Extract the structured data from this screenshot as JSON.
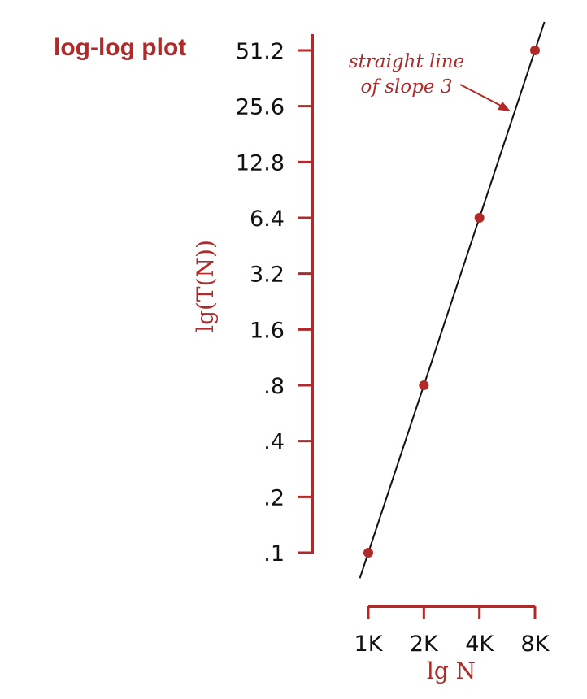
{
  "chart_data": {
    "type": "scatter",
    "title": "log-log plot",
    "xlabel": "lg N",
    "ylabel": "lg(T(N))",
    "x_scale": "log2",
    "y_scale": "log2",
    "x_ticks": [
      {
        "value": 1000,
        "label": "1K"
      },
      {
        "value": 2000,
        "label": "2K"
      },
      {
        "value": 4000,
        "label": "4K"
      },
      {
        "value": 8000,
        "label": "8K"
      }
    ],
    "y_ticks": [
      {
        "value": 0.1,
        "label": ".1"
      },
      {
        "value": 0.2,
        "label": ".2"
      },
      {
        "value": 0.4,
        "label": ".4"
      },
      {
        "value": 0.8,
        "label": ".8"
      },
      {
        "value": 1.6,
        "label": "1.6"
      },
      {
        "value": 3.2,
        "label": "3.2"
      },
      {
        "value": 6.4,
        "label": "6.4"
      },
      {
        "value": 12.8,
        "label": "12.8"
      },
      {
        "value": 25.6,
        "label": "25.6"
      },
      {
        "value": 51.2,
        "label": "51.2"
      }
    ],
    "series": [
      {
        "points": [
          {
            "x": 1000,
            "y": 0.1
          },
          {
            "x": 2000,
            "y": 0.8
          },
          {
            "x": 4000,
            "y": 6.4
          },
          {
            "x": 8000,
            "y": 51.2
          }
        ]
      }
    ],
    "fit_line": {
      "slope": 3,
      "x_range": [
        900,
        9000
      ]
    },
    "annotation": {
      "lines": [
        "straight line",
        "of slope 3"
      ]
    },
    "colors": {
      "accent": "#b02a2a",
      "line": "#111111",
      "text": "#111111"
    }
  }
}
